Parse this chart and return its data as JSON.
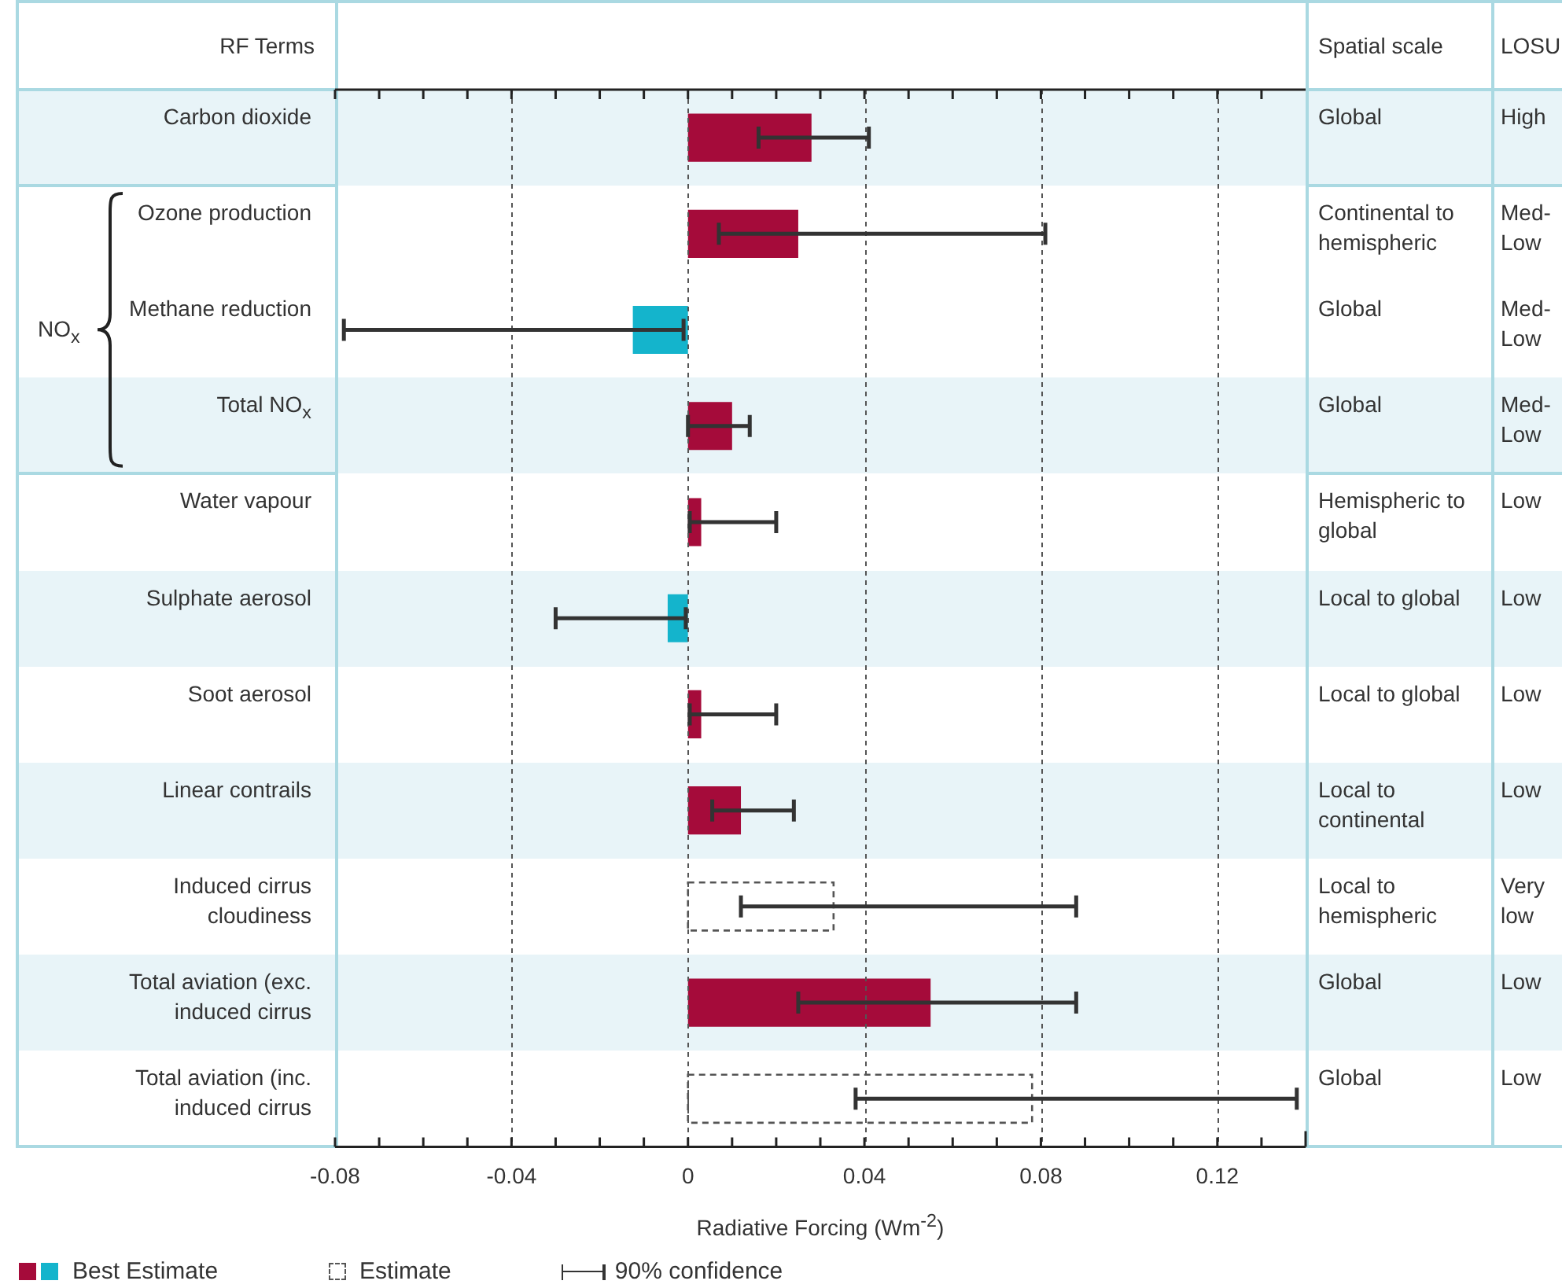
{
  "chart_data": {
    "type": "bar",
    "orientation": "horizontal",
    "ylabel": "RF Terms",
    "xlabel": "Radiative Forcing (Wm$^{-2}$)",
    "categories": [
      "Carbon dioxide",
      "Ozone production",
      "Methane reduction",
      "Total NO$_{x}$",
      "Water vapour",
      "Sulphate aerosol",
      "Soot aerosol",
      "Linear contrails",
      "Induced cirrus cloudiness",
      "Total aviation (exc. induced cirrus",
      "Total aviation (inc. induced cirrus"
    ],
    "series": [
      {
        "name": "Best Estimate",
        "colors": [
          "#a50b3a",
          "#a50b3a",
          "#14b4cc",
          "#a50b3a",
          "#a50b3a",
          "#14b4cc",
          "#a50b3a",
          "#a50b3a",
          null,
          "#a50b3a",
          null
        ],
        "values": [
          0.028,
          0.025,
          -0.0125,
          0.01,
          0.003,
          -0.0046,
          0.003,
          0.012,
          null,
          0.055,
          null
        ],
        "errors": [
          [
            0.016,
            0.041
          ],
          [
            0.007,
            0.081
          ],
          [
            -0.078,
            -0.001
          ],
          [
            0.0,
            0.014
          ],
          [
            0.0004,
            0.02
          ],
          [
            -0.03,
            -0.0005
          ],
          [
            0.0004,
            0.02
          ],
          [
            0.0055,
            0.024
          ],
          null,
          [
            0.025,
            0.088
          ],
          null
        ],
        "line_style": "solid"
      },
      {
        "name": "Estimate",
        "color": "#555555",
        "values": [
          null,
          null,
          null,
          null,
          null,
          null,
          null,
          null,
          0.033,
          null,
          0.078
        ],
        "errors": [
          null,
          null,
          null,
          null,
          null,
          null,
          null,
          null,
          [
            0.012,
            0.088
          ],
          null,
          [
            0.038,
            0.138
          ]
        ],
        "line_style": "dashed"
      }
    ],
    "xlim": [
      -0.08,
      0.14
    ],
    "xticks": [
      -0.08,
      {
        "value": -0.07,
        "label": null
      },
      {
        "value": -0.06,
        "label": null
      },
      {
        "value": -0.05,
        "label": null
      },
      -0.04,
      {
        "value": -0.03,
        "label": null
      },
      {
        "value": -0.02,
        "label": null
      },
      {
        "value": -0.01,
        "label": null
      },
      0,
      {
        "value": 0.01,
        "label": null
      },
      {
        "value": 0.02,
        "label": null
      },
      {
        "value": 0.03,
        "label": null
      },
      0.04,
      {
        "value": 0.05,
        "label": null
      },
      {
        "value": 0.06,
        "label": null
      },
      {
        "value": 0.07,
        "label": null
      },
      0.08,
      {
        "value": 0.09,
        "label": null
      },
      {
        "value": 0.1,
        "label": null
      },
      {
        "value": 0.11,
        "label": null
      },
      0.12,
      {
        "value": 0.13,
        "label": null
      }
    ],
    "grid": "x",
    "legend": "bottom left",
    "annotations": [
      "Spatial scale",
      "LOSU",
      "Global",
      "High",
      "Continental to hemispheric",
      "Med-Low",
      "Global",
      "Med-Low",
      "Global",
      "Med-Low",
      "Hemispheric to global",
      "Low",
      "Local to global",
      "Low",
      "Local to global",
      "Low",
      "Local to continental",
      "Low",
      "Local to hemispheric",
      "Very low",
      "Global",
      "Low",
      "Global",
      "Low",
      "NO$_{x}$",
      "90% confidence"
    ]
  }
}
